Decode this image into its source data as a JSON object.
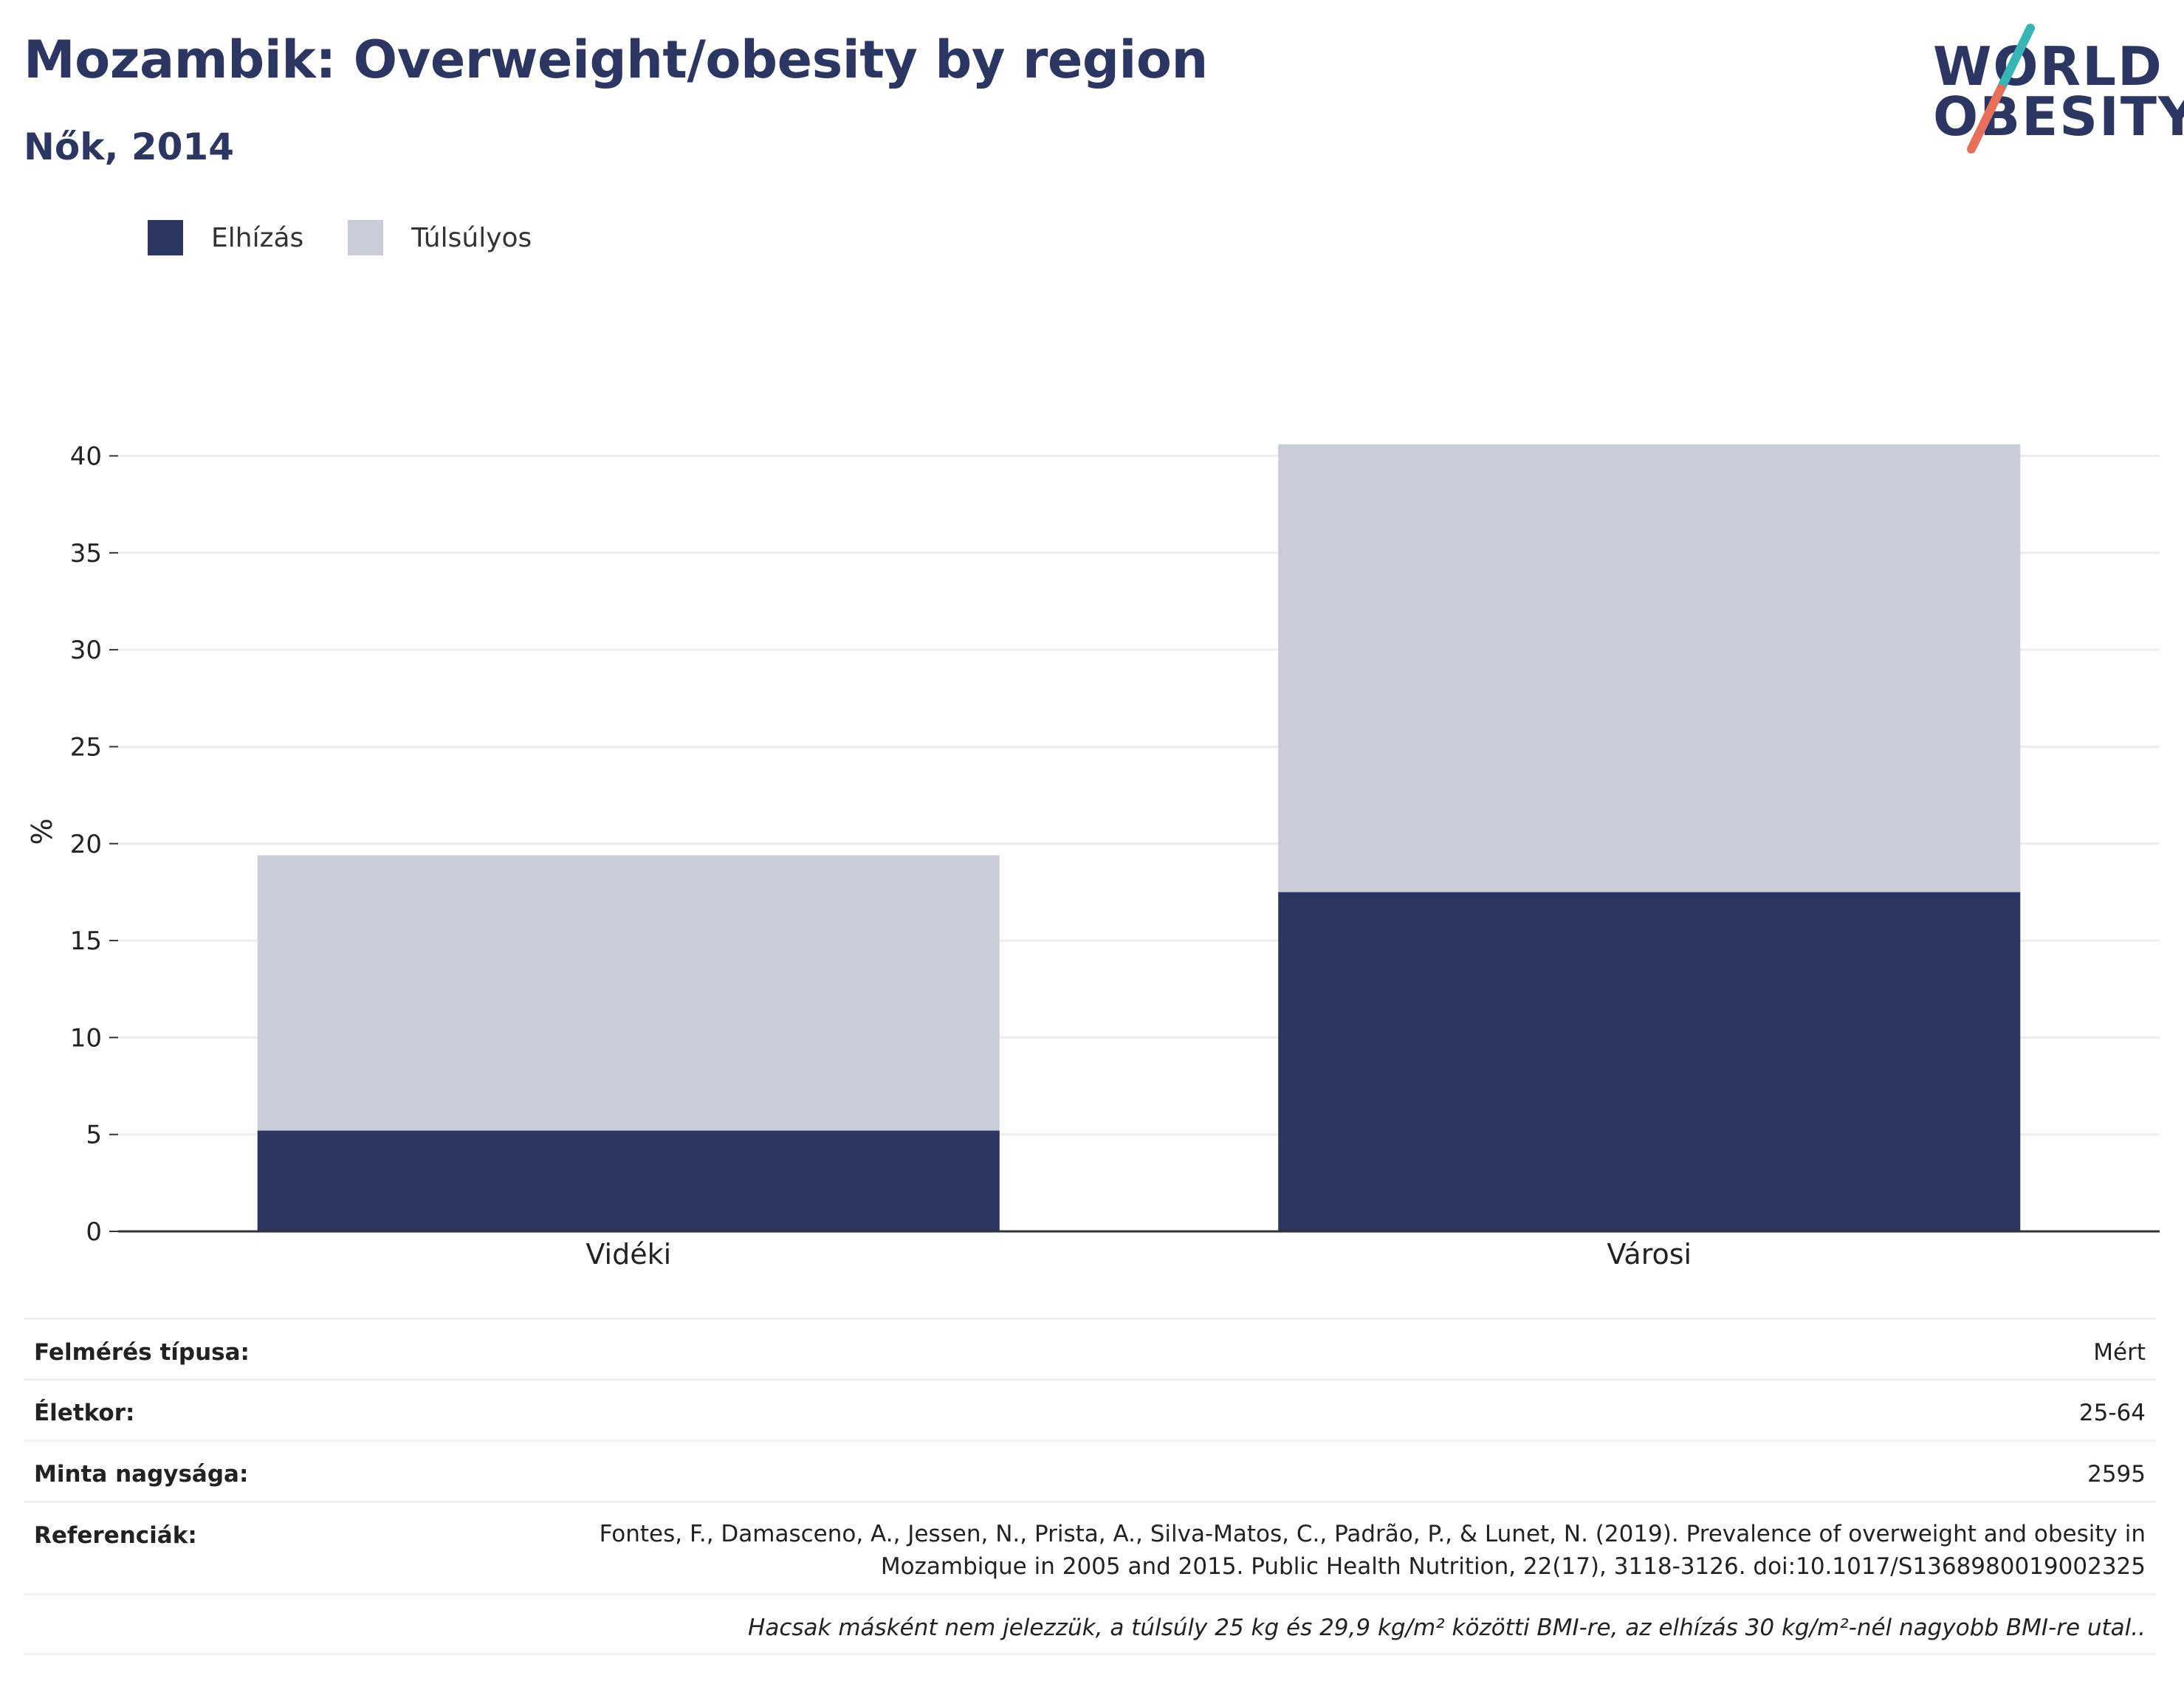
{
  "header": {
    "title": "Mozambik: Overweight/obesity by region",
    "subtitle": "Nők, 2014"
  },
  "logo": {
    "line1": "WORLD",
    "line2": "OBESITY",
    "accent_teal": "#35b6b4",
    "accent_coral": "#e8705a"
  },
  "colors": {
    "obese": "#2b3663",
    "overweight": "#cacdd8",
    "grid": "#ececf1",
    "axis": "#333333"
  },
  "chart_data": {
    "type": "bar",
    "stacked": true,
    "categories": [
      "Vidéki",
      "Városi"
    ],
    "series": [
      {
        "name": "Elhízás",
        "values": [
          5.2,
          17.5
        ]
      },
      {
        "name": "Túlsúlyos",
        "values": [
          14.2,
          23.1
        ]
      }
    ],
    "ylabel": "%",
    "xlabel": "",
    "ylim": [
      0,
      42
    ],
    "yticks": [
      0,
      5,
      10,
      15,
      20,
      25,
      30,
      35,
      40
    ],
    "grid": true,
    "legend_position": "top-left"
  },
  "info": {
    "survey_type_label": "Felmérés típusa:",
    "survey_type_value": "Mért",
    "age_label": "Életkor:",
    "age_value": "25-64",
    "sample_label": "Minta nagysága:",
    "sample_value": "2595",
    "ref_label": "Referenciák:",
    "ref_line1": "Fontes, F., Damasceno, A., Jessen, N., Prista, A., Silva-Matos, C., Padrão, P., & Lunet, N. (2019). Prevalence of overweight and obesity in",
    "ref_line2": "Mozambique in 2005 and 2015. Public Health Nutrition, 22(17), 3118-3126. doi:10.1017/S1368980019002325",
    "note": "Hacsak másként nem jelezzük, a túlsúly 25 kg és 29,9 kg/m² közötti BMI-re, az elhízás 30 kg/m²-nél nagyobb BMI-re utal.."
  }
}
